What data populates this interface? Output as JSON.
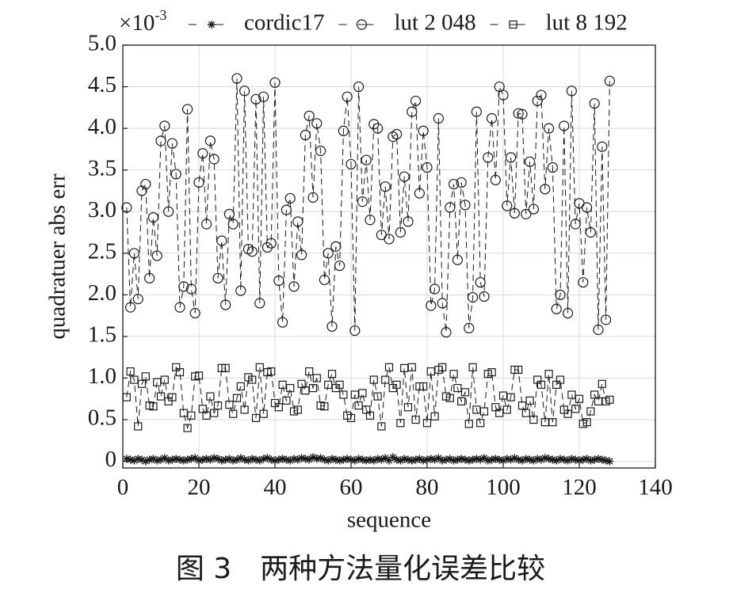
{
  "chart_data": {
    "type": "line",
    "axis_multiplier": {
      "base": "×10",
      "exponent": "-3"
    },
    "xlabel": "sequence",
    "ylabel": "quadratuer abs err",
    "caption": "图 3　两种方法量化误差比较",
    "xlim": [
      0,
      140
    ],
    "xticks": [
      0,
      20,
      40,
      60,
      80,
      100,
      120,
      140
    ],
    "ylim": [
      -0.08,
      5.0
    ],
    "yticks": [
      0,
      0.5,
      {
        "value": 1,
        "label": "1.0"
      },
      1.5,
      {
        "value": 2,
        "label": "2.0"
      },
      2.5,
      {
        "value": 3,
        "label": "3.0"
      },
      3.5,
      {
        "value": 4,
        "label": "4.0"
      },
      4.5,
      {
        "value": 5,
        "label": "5.0"
      }
    ],
    "grid": true,
    "legend": "top",
    "x": [
      1,
      2,
      3,
      4,
      5,
      6,
      7,
      8,
      9,
      10,
      11,
      12,
      13,
      14,
      15,
      16,
      17,
      18,
      19,
      20,
      21,
      22,
      23,
      24,
      25,
      26,
      27,
      28,
      29,
      30,
      31,
      32,
      33,
      34,
      35,
      36,
      37,
      38,
      39,
      40,
      41,
      42,
      43,
      44,
      45,
      46,
      47,
      48,
      49,
      50,
      51,
      52,
      53,
      54,
      55,
      56,
      57,
      58,
      59,
      60,
      61,
      62,
      63,
      64,
      65,
      66,
      67,
      68,
      69,
      70,
      71,
      72,
      73,
      74,
      75,
      76,
      77,
      78,
      79,
      80,
      81,
      82,
      83,
      84,
      85,
      86,
      87,
      88,
      89,
      90,
      91,
      92,
      93,
      94,
      95,
      96,
      97,
      98,
      99,
      100,
      101,
      102,
      103,
      104,
      105,
      106,
      107,
      108,
      109,
      110,
      111,
      112,
      113,
      114,
      115,
      116,
      117,
      118,
      119,
      120,
      121,
      122,
      123,
      124,
      125,
      126,
      127,
      128
    ],
    "series": [
      {
        "name": "cordic17",
        "color": "#1a1a1a",
        "marker": "star",
        "values": [
          0.03,
          0.02,
          0.01,
          0.03,
          0.02,
          0.0,
          0.02,
          0.03,
          0.01,
          0.02,
          0.04,
          0.01,
          0.02,
          0.03,
          0.02,
          0.01,
          0.02,
          0.03,
          0.04,
          0.01,
          0.02,
          0.03,
          0.02,
          0.04,
          0.03,
          0.01,
          0.02,
          0.03,
          0.01,
          0.02,
          0.04,
          0.02,
          0.01,
          0.03,
          0.02,
          0.01,
          0.03,
          0.04,
          0.02,
          0.01,
          0.02,
          0.03,
          0.02,
          0.01,
          0.03,
          0.02,
          0.04,
          0.03,
          0.02,
          0.05,
          0.03,
          0.04,
          0.02,
          0.01,
          0.03,
          0.02,
          0.01,
          0.02,
          0.03,
          0.02,
          0.01,
          0.03,
          0.02,
          0.01,
          0.02,
          0.01,
          0.03,
          0.02,
          0.04,
          0.01,
          0.05,
          0.02,
          0.01,
          0.03,
          0.02,
          0.01,
          0.02,
          0.03,
          0.01,
          0.02,
          0.03,
          0.02,
          0.04,
          0.01,
          0.02,
          0.03,
          0.01,
          0.02,
          0.03,
          0.02,
          0.01,
          0.02,
          0.03,
          0.02,
          0.04,
          0.01,
          0.02,
          0.03,
          0.02,
          0.01,
          0.03,
          0.02,
          0.04,
          0.02,
          0.01,
          0.03,
          0.02,
          0.01,
          0.03,
          0.02,
          0.04,
          0.03,
          0.02,
          0.01,
          0.03,
          0.02,
          0.01,
          0.03,
          0.02,
          0.01,
          0.02,
          0.03,
          0.01,
          0.02,
          0.03,
          0.02,
          0.01,
          0.0
        ]
      },
      {
        "name": "lut 2 048",
        "color": "#1a1a1a",
        "marker": "circle",
        "values": [
          3.05,
          1.85,
          2.5,
          1.95,
          3.25,
          3.33,
          2.2,
          2.93,
          2.47,
          3.85,
          4.03,
          3.0,
          3.82,
          3.45,
          1.85,
          2.1,
          4.23,
          2.07,
          1.78,
          3.35,
          3.7,
          2.85,
          3.85,
          3.63,
          2.2,
          2.65,
          1.88,
          2.97,
          2.85,
          4.6,
          2.05,
          4.45,
          2.55,
          2.52,
          4.35,
          1.9,
          4.38,
          2.57,
          2.62,
          4.55,
          2.17,
          1.67,
          3.02,
          3.16,
          2.1,
          2.88,
          2.48,
          3.92,
          4.15,
          3.17,
          4.06,
          3.73,
          2.18,
          2.5,
          1.62,
          2.58,
          2.35,
          3.97,
          4.38,
          3.57,
          1.57,
          4.5,
          3.12,
          3.62,
          2.9,
          4.05,
          4.0,
          2.72,
          3.3,
          2.67,
          3.9,
          3.93,
          2.75,
          3.42,
          2.88,
          4.2,
          4.33,
          3.22,
          3.97,
          3.53,
          1.87,
          2.07,
          4.12,
          1.9,
          1.55,
          3.05,
          3.33,
          2.42,
          3.35,
          3.08,
          1.6,
          1.97,
          4.2,
          2.15,
          1.98,
          3.65,
          4.12,
          3.38,
          4.5,
          4.4,
          3.07,
          3.65,
          2.98,
          4.18,
          4.17,
          2.97,
          3.6,
          3.03,
          4.33,
          4.4,
          3.27,
          4.0,
          3.53,
          1.83,
          2.0,
          4.03,
          1.78,
          4.45,
          2.85,
          3.1,
          2.15,
          3.05,
          2.75,
          4.3,
          1.58,
          3.78,
          1.7,
          4.57
        ]
      },
      {
        "name": "lut 8 192",
        "color": "#1a1a1a",
        "marker": "square",
        "values": [
          0.77,
          1.08,
          0.98,
          0.42,
          0.93,
          1.02,
          0.67,
          0.66,
          0.95,
          0.78,
          0.98,
          0.72,
          0.77,
          1.13,
          1.07,
          0.58,
          0.4,
          0.55,
          1.02,
          1.03,
          0.63,
          0.55,
          0.78,
          0.58,
          0.67,
          1.12,
          1.12,
          0.68,
          0.57,
          0.76,
          0.9,
          0.62,
          1.01,
          0.98,
          0.52,
          1.13,
          0.57,
          1.07,
          1.08,
          0.7,
          0.65,
          0.92,
          0.73,
          0.88,
          0.6,
          0.62,
          0.93,
          0.85,
          1.08,
          0.88,
          1.0,
          0.67,
          0.66,
          0.92,
          1.05,
          0.88,
          0.92,
          0.8,
          0.55,
          0.52,
          0.8,
          0.67,
          0.82,
          0.62,
          0.55,
          0.98,
          0.78,
          0.42,
          0.98,
          1.13,
          0.88,
          0.92,
          0.46,
          1.12,
          0.65,
          1.13,
          0.5,
          0.9,
          0.9,
          0.46,
          1.08,
          0.54,
          1.1,
          1.13,
          0.78,
          0.76,
          1.05,
          0.88,
          0.72,
          0.83,
          0.45,
          1.13,
          0.62,
          0.46,
          0.6,
          1.05,
          1.07,
          0.65,
          0.58,
          0.79,
          0.62,
          0.77,
          1.1,
          1.1,
          0.67,
          0.58,
          0.73,
          0.5,
          0.98,
          0.92,
          0.47,
          1.05,
          0.47,
          0.92,
          0.98,
          0.62,
          0.57,
          0.8,
          0.63,
          0.75,
          0.45,
          0.47,
          0.6,
          0.8,
          0.72,
          0.93,
          0.72,
          0.74
        ]
      }
    ]
  }
}
